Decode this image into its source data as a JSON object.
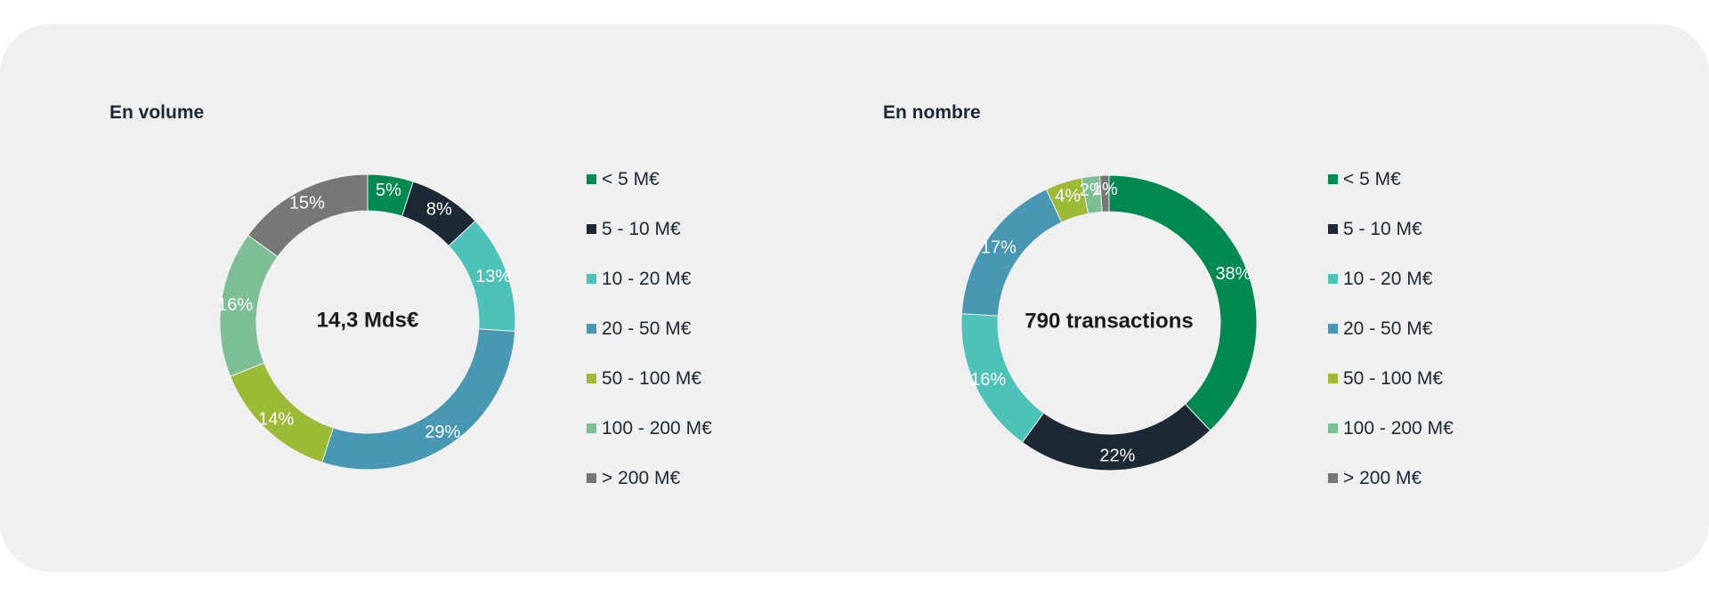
{
  "colors": {
    "panel_background": "#f0f0f0",
    "categories": [
      "#008a52",
      "#1c2833",
      "#4dc2b8",
      "#4897b3",
      "#9dba36",
      "#7dbf94",
      "#777777"
    ]
  },
  "chart_data": [
    {
      "type": "donut",
      "title": "En volume",
      "center_label": "14,3 Mds€",
      "categories": [
        "< 5 M€",
        "5 - 10 M€",
        "10 - 20 M€",
        "20 - 50 M€",
        "50 - 100 M€",
        "100 - 200 M€",
        "> 200 M€"
      ],
      "values": [
        5,
        8,
        13,
        29,
        14,
        16,
        15
      ],
      "data_labels": [
        "5%",
        "8%",
        "13%",
        "29%",
        "14%",
        "16%",
        "15%"
      ],
      "legend_position": "right"
    },
    {
      "type": "donut",
      "title": "En nombre",
      "center_label": "790 transactions",
      "categories": [
        "< 5 M€",
        "5 - 10 M€",
        "10 - 20 M€",
        "20 - 50 M€",
        "50 - 100 M€",
        "100 - 200 M€",
        "> 200 M€"
      ],
      "values": [
        38,
        22,
        16,
        17,
        4,
        2,
        1
      ],
      "data_labels": [
        "38%",
        "22%",
        "16%",
        "17%",
        "4%",
        "2%",
        "1%"
      ],
      "legend_position": "right"
    }
  ]
}
